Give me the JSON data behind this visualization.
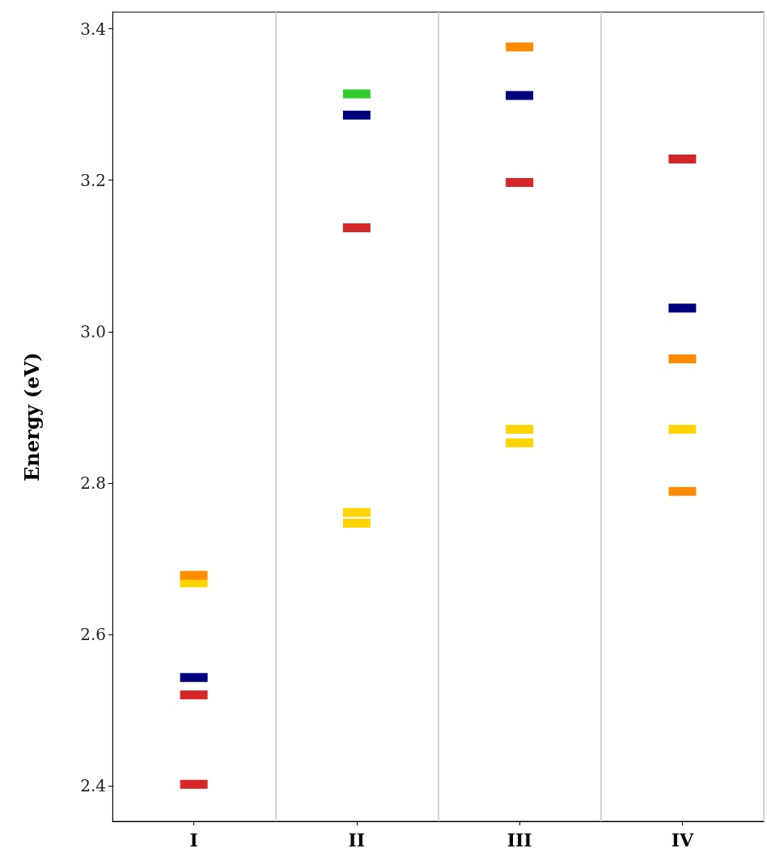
{
  "chart_data": {
    "type": "scatter",
    "ylabel": "Energy (eV)",
    "categories": [
      "I",
      "II",
      "III",
      "IV"
    ],
    "ylim": [
      2.353,
      3.422
    ],
    "yticks": [
      2.4,
      2.6,
      2.8,
      {
        "value": 3,
        "label": "3.0"
      },
      3.2,
      3.4
    ],
    "grid": false,
    "marker": "square",
    "series": [
      {
        "color": "#00007f",
        "values": [
          2.543,
          3.286,
          3.312,
          3.031
        ]
      },
      {
        "color": "#d62728",
        "x": [
          "I",
          "I",
          "II",
          "III",
          "IV"
        ],
        "values": [
          2.52,
          2.402,
          3.137,
          3.197,
          3.228
        ]
      },
      {
        "color": "#ffd400",
        "x": [
          "I",
          "II",
          "II",
          "III",
          "III",
          "IV"
        ],
        "values": [
          2.668,
          2.761,
          2.747,
          2.871,
          2.853,
          2.871
        ]
      },
      {
        "color": "#ff8c00",
        "x": [
          "I",
          "III",
          "IV",
          "IV"
        ],
        "values": [
          2.678,
          3.376,
          2.964,
          2.789
        ]
      },
      {
        "color": "#33cc33",
        "x": [
          "II"
        ],
        "values": [
          3.314
        ]
      }
    ]
  }
}
